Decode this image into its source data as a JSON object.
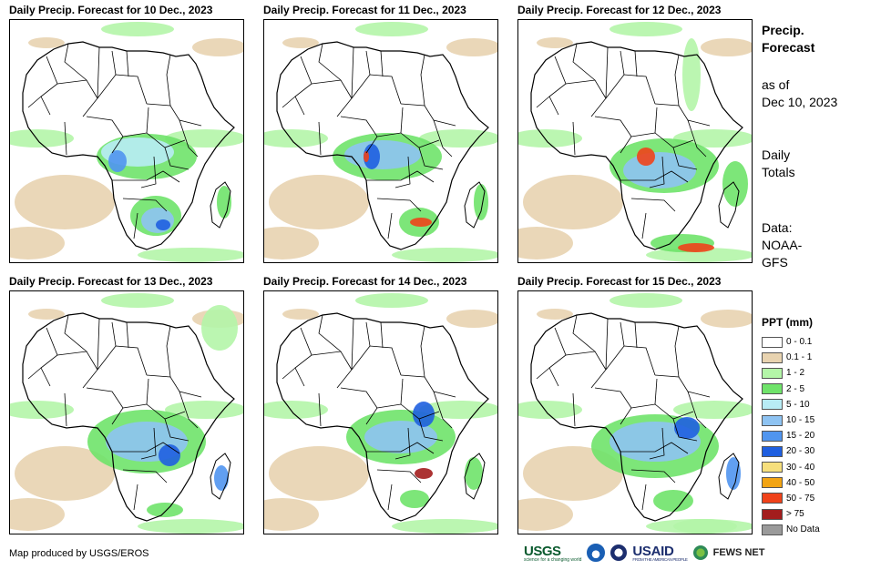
{
  "panels": [
    {
      "title": "Daily Precip. Forecast for 10 Dec., 2023"
    },
    {
      "title": "Daily Precip. Forecast for 11 Dec., 2023"
    },
    {
      "title": "Daily Precip. Forecast for 12 Dec., 2023"
    },
    {
      "title": "Daily Precip. Forecast for 13 Dec., 2023"
    },
    {
      "title": "Daily Precip. Forecast for 14 Dec., 2023"
    },
    {
      "title": "Daily Precip. Forecast for 15 Dec., 2023"
    }
  ],
  "side": {
    "title_line1": "Precip.",
    "title_line2": "Forecast",
    "asof_line1": "as of",
    "asof_line2": "Dec 10, 2023",
    "daily_line1": "Daily",
    "daily_line2": "Totals",
    "data_line1": "Data:",
    "data_line2": "NOAA-",
    "data_line3": "GFS"
  },
  "legend": {
    "title": "PPT (mm)",
    "items": [
      {
        "label": "0 - 0.1",
        "color": "#ffffff"
      },
      {
        "label": "0.1 - 1",
        "color": "#e8d3b0"
      },
      {
        "label": "1 - 2",
        "color": "#b4f5a8"
      },
      {
        "label": "2 - 5",
        "color": "#6fe36a"
      },
      {
        "label": "5 - 10",
        "color": "#b8ecf5"
      },
      {
        "label": "10 - 15",
        "color": "#8ec3f2"
      },
      {
        "label": "15 - 20",
        "color": "#5095ef"
      },
      {
        "label": "20 - 30",
        "color": "#1f5fe0"
      },
      {
        "label": "30 - 40",
        "color": "#f6df7c"
      },
      {
        "label": "40 - 50",
        "color": "#f2a413"
      },
      {
        "label": "50 - 75",
        "color": "#f0421a"
      },
      {
        "label": "> 75",
        "color": "#a31d1d"
      },
      {
        "label": "No Data",
        "color": "#9a9a9a"
      }
    ]
  },
  "footer": {
    "credit": "Map produced by USGS/EROS",
    "logo_usgs": "USGS",
    "logo_usgs_tagline": "science for a changing world",
    "logo_usaid": "USAID",
    "logo_usaid_tagline": "FROM THE AMERICAN PEOPLE",
    "logo_fews": "FEWS NET"
  }
}
